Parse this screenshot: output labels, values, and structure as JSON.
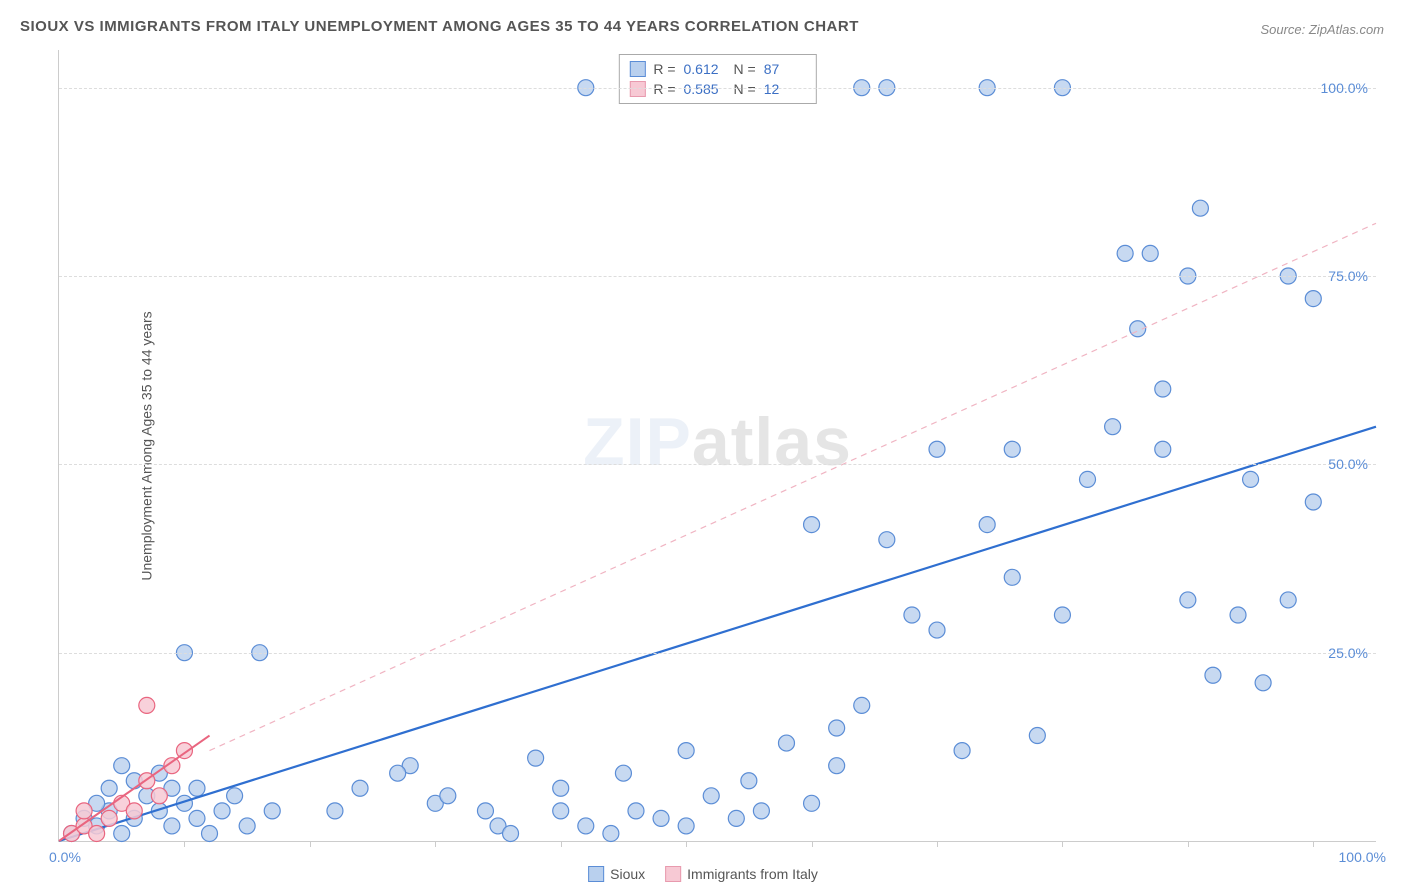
{
  "title": "SIOUX VS IMMIGRANTS FROM ITALY UNEMPLOYMENT AMONG AGES 35 TO 44 YEARS CORRELATION CHART",
  "source": "Source: ZipAtlas.com",
  "ylabel": "Unemployment Among Ages 35 to 44 years",
  "watermark_a": "ZIP",
  "watermark_b": "atlas",
  "chart": {
    "type": "scatter",
    "xlim": [
      0,
      105
    ],
    "ylim": [
      0,
      105
    ],
    "xlabel_min": "0.0%",
    "xlabel_max": "100.0%",
    "yticks": [
      25,
      50,
      75,
      100
    ],
    "ytick_labels": [
      "25.0%",
      "50.0%",
      "75.0%",
      "100.0%"
    ],
    "xtick_step": 10,
    "background_color": "#ffffff",
    "grid_color": "#dddddd",
    "marker_radius": 8,
    "marker_stroke": 1.2,
    "series": [
      {
        "name": "Sioux",
        "fill": "#b9d0ee",
        "stroke": "#5b8dd6",
        "opacity": 0.8,
        "trend": {
          "x1": 0,
          "y1": 0,
          "x2": 105,
          "y2": 55,
          "color": "#2f6fd0",
          "width": 2.2,
          "dash": "none"
        },
        "trend_dashed": {
          "x1": 12,
          "y1": 12,
          "x2": 105,
          "y2": 82,
          "color": "#f0b4c2",
          "width": 1.2,
          "dash": "6,5"
        },
        "R": "0.612",
        "N": "87",
        "points": [
          [
            1,
            1
          ],
          [
            2,
            3
          ],
          [
            3,
            2
          ],
          [
            4,
            4
          ],
          [
            5,
            1
          ],
          [
            3,
            5
          ],
          [
            6,
            3
          ],
          [
            7,
            6
          ],
          [
            8,
            4
          ],
          [
            9,
            2
          ],
          [
            4,
            7
          ],
          [
            6,
            8
          ],
          [
            10,
            5
          ],
          [
            11,
            3
          ],
          [
            12,
            1
          ],
          [
            9,
            7
          ],
          [
            13,
            4
          ],
          [
            5,
            10
          ],
          [
            8,
            9
          ],
          [
            14,
            6
          ],
          [
            15,
            2
          ],
          [
            10,
            25
          ],
          [
            16,
            25
          ],
          [
            11,
            7
          ],
          [
            17,
            4
          ],
          [
            24,
            7
          ],
          [
            28,
            10
          ],
          [
            30,
            5
          ],
          [
            22,
            4
          ],
          [
            35,
            2
          ],
          [
            27,
            9
          ],
          [
            31,
            6
          ],
          [
            38,
            11
          ],
          [
            40,
            4
          ],
          [
            42,
            2
          ],
          [
            44,
            1
          ],
          [
            46,
            4
          ],
          [
            48,
            3
          ],
          [
            50,
            2
          ],
          [
            34,
            4
          ],
          [
            36,
            1
          ],
          [
            52,
            6
          ],
          [
            54,
            3
          ],
          [
            56,
            4
          ],
          [
            58,
            13
          ],
          [
            60,
            5
          ],
          [
            62,
            15
          ],
          [
            64,
            18
          ],
          [
            66,
            40
          ],
          [
            68,
            30
          ],
          [
            70,
            28
          ],
          [
            72,
            12
          ],
          [
            74,
            42
          ],
          [
            76,
            35
          ],
          [
            78,
            14
          ],
          [
            80,
            30
          ],
          [
            82,
            48
          ],
          [
            84,
            55
          ],
          [
            86,
            68
          ],
          [
            88,
            60
          ],
          [
            90,
            32
          ],
          [
            92,
            22
          ],
          [
            94,
            30
          ],
          [
            96,
            21
          ],
          [
            98,
            32
          ],
          [
            100,
            45
          ],
          [
            85,
            78
          ],
          [
            87,
            78
          ],
          [
            91,
            84
          ],
          [
            80,
            100
          ],
          [
            74,
            100
          ],
          [
            64,
            100
          ],
          [
            66,
            100
          ],
          [
            42,
            100
          ],
          [
            70,
            52
          ],
          [
            76,
            52
          ],
          [
            60,
            42
          ],
          [
            62,
            10
          ],
          [
            55,
            8
          ],
          [
            50,
            12
          ],
          [
            45,
            9
          ],
          [
            40,
            7
          ],
          [
            88,
            52
          ],
          [
            90,
            75
          ],
          [
            98,
            75
          ],
          [
            100,
            72
          ],
          [
            95,
            48
          ]
        ]
      },
      {
        "name": "Immigrants from Italy",
        "fill": "#f7c9d4",
        "stroke": "#e9657f",
        "opacity": 0.85,
        "trend": {
          "x1": 0,
          "y1": 0,
          "x2": 12,
          "y2": 14,
          "color": "#e9657f",
          "width": 2,
          "dash": "none"
        },
        "R": "0.585",
        "N": "12",
        "points": [
          [
            1,
            1
          ],
          [
            2,
            2
          ],
          [
            3,
            1
          ],
          [
            2,
            4
          ],
          [
            4,
            3
          ],
          [
            5,
            5
          ],
          [
            6,
            4
          ],
          [
            7,
            8
          ],
          [
            8,
            6
          ],
          [
            9,
            10
          ],
          [
            10,
            12
          ],
          [
            7,
            18
          ]
        ]
      }
    ]
  },
  "correlation_box": {
    "rows": [
      {
        "swatch": "blue",
        "R_label": "R =",
        "R": "0.612",
        "N_label": "N =",
        "N": "87"
      },
      {
        "swatch": "pink",
        "R_label": "R =",
        "R": "0.585",
        "N_label": "N =",
        "N": "12"
      }
    ]
  },
  "legend": {
    "a_label": "Sioux",
    "b_label": "Immigrants from Italy"
  }
}
